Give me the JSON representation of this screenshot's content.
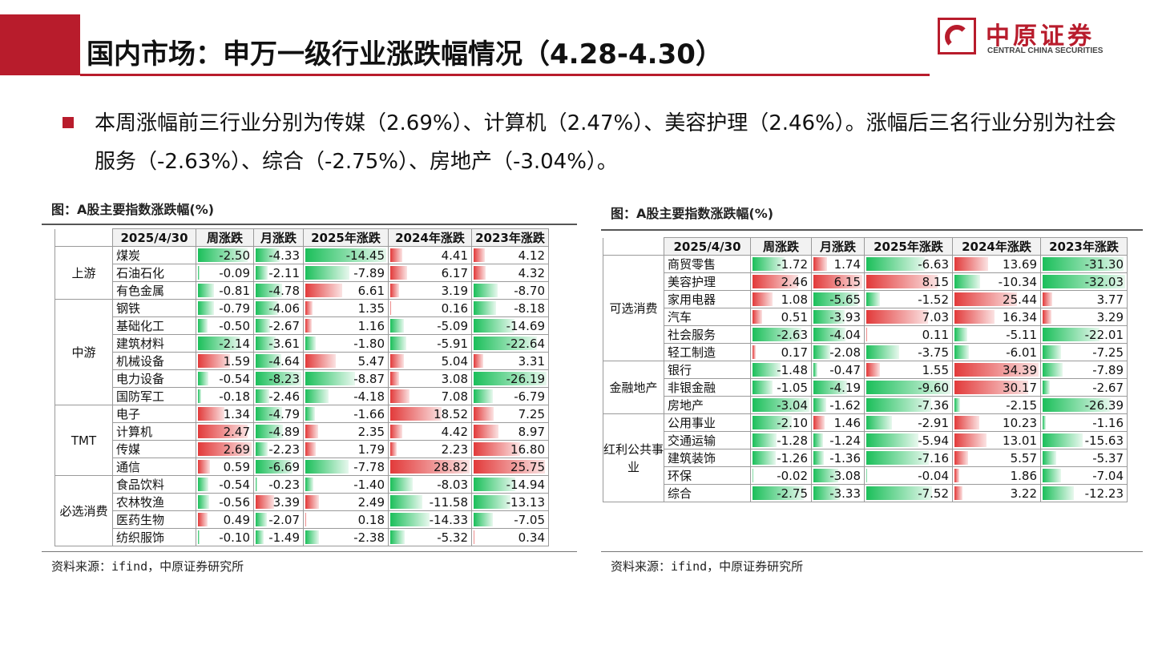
{
  "header": {
    "title": "国内市场：申万一级行业涨跌幅情况（4.28-4.30）",
    "logo_cn": "中原证券",
    "logo_en": "CENTRAL CHINA SECURITIES"
  },
  "summary": "本周涨幅前三行业分别为传媒（2.69%）、计算机（2.47%）、美容护理（2.46%）。涨幅后三名行业分别为社会服务（-2.63%）、综合（-2.75%）、房地产（-3.04%）。",
  "left_figure": {
    "caption": "图：A股主要指数涨跌幅(%)",
    "source": "资料来源：ifind，中原证券研究所",
    "headers": [
      "2025/4/30",
      "周涨跌",
      "月涨跌",
      "2025年涨跌",
      "2024年涨跌",
      "2023年涨跌"
    ],
    "max": [
      2.69,
      8.23,
      14.45,
      28.82,
      26.19
    ],
    "groups": [
      {
        "name": "上游",
        "rows": [
          {
            "name": "煤炭",
            "v": [
              "-2.50",
              "-4.33",
              "-14.45",
              "4.41",
              "4.12"
            ]
          },
          {
            "name": "石油石化",
            "v": [
              "-0.09",
              "-2.11",
              "-7.89",
              "6.17",
              "4.32"
            ]
          },
          {
            "name": "有色金属",
            "v": [
              "-0.81",
              "-4.78",
              "6.61",
              "3.19",
              "-8.70"
            ]
          }
        ]
      },
      {
        "name": "中游",
        "rows": [
          {
            "name": "钢铁",
            "v": [
              "-0.79",
              "-4.06",
              "1.35",
              "0.16",
              "-8.18"
            ]
          },
          {
            "name": "基础化工",
            "v": [
              "-0.50",
              "-2.67",
              "1.16",
              "-5.09",
              "-14.69"
            ]
          },
          {
            "name": "建筑材料",
            "v": [
              "-2.14",
              "-3.61",
              "-1.80",
              "-5.91",
              "-22.64"
            ]
          },
          {
            "name": "机械设备",
            "v": [
              "1.59",
              "-4.64",
              "5.47",
              "5.04",
              "3.31"
            ]
          },
          {
            "name": "电力设备",
            "v": [
              "-0.54",
              "-8.23",
              "-8.87",
              "3.08",
              "-26.19"
            ]
          },
          {
            "name": "国防军工",
            "v": [
              "-0.18",
              "-2.46",
              "-4.18",
              "7.08",
              "-6.79"
            ]
          }
        ]
      },
      {
        "name": "TMT",
        "rows": [
          {
            "name": "电子",
            "v": [
              "1.34",
              "-4.79",
              "-1.66",
              "18.52",
              "7.25"
            ]
          },
          {
            "name": "计算机",
            "v": [
              "2.47",
              "-4.89",
              "2.35",
              "4.42",
              "8.97"
            ]
          },
          {
            "name": "传媒",
            "v": [
              "2.69",
              "-2.23",
              "1.79",
              "2.23",
              "16.80"
            ]
          },
          {
            "name": "通信",
            "v": [
              "0.59",
              "-6.69",
              "-7.78",
              "28.82",
              "25.75"
            ]
          }
        ]
      },
      {
        "name": "必选消费",
        "rows": [
          {
            "name": "食品饮料",
            "v": [
              "-0.54",
              "-0.23",
              "-1.40",
              "-8.03",
              "-14.94"
            ]
          },
          {
            "name": "农林牧渔",
            "v": [
              "-0.56",
              "3.39",
              "2.49",
              "-11.58",
              "-13.13"
            ]
          },
          {
            "name": "医药生物",
            "v": [
              "0.49",
              "-2.07",
              "0.18",
              "-14.33",
              "-7.05"
            ]
          },
          {
            "name": "纺织服饰",
            "v": [
              "-0.10",
              "-1.49",
              "-2.38",
              "-5.32",
              "0.34"
            ]
          }
        ]
      }
    ]
  },
  "right_figure": {
    "caption": "图：A股主要指数涨跌幅(%)",
    "source": "资料来源：ifind，中原证券研究所",
    "headers": [
      "2025/4/30",
      "周涨跌",
      "月涨跌",
      "2025年涨跌",
      "2024年涨跌",
      "2023年涨跌"
    ],
    "max": [
      3.04,
      6.15,
      9.6,
      34.39,
      32.03
    ],
    "groups": [
      {
        "name": "可选消费",
        "rows": [
          {
            "name": "商贸零售",
            "v": [
              "-1.72",
              "1.74",
              "-6.63",
              "13.69",
              "-31.30"
            ]
          },
          {
            "name": "美容护理",
            "v": [
              "2.46",
              "6.15",
              "8.15",
              "-10.34",
              "-32.03"
            ]
          },
          {
            "name": "家用电器",
            "v": [
              "1.08",
              "-5.65",
              "-1.52",
              "25.44",
              "3.77"
            ]
          },
          {
            "name": "汽车",
            "v": [
              "0.51",
              "-3.93",
              "7.03",
              "16.34",
              "3.29"
            ]
          },
          {
            "name": "社会服务",
            "v": [
              "-2.63",
              "-4.04",
              "0.11",
              "-5.11",
              "-22.01"
            ]
          },
          {
            "name": "轻工制造",
            "v": [
              "0.17",
              "-2.08",
              "-3.75",
              "-6.01",
              "-7.25"
            ]
          }
        ]
      },
      {
        "name": "金融地产",
        "rows": [
          {
            "name": "银行",
            "v": [
              "-1.48",
              "-0.47",
              "1.55",
              "34.39",
              "-7.89"
            ]
          },
          {
            "name": "非银金融",
            "v": [
              "-1.05",
              "-4.19",
              "-9.60",
              "30.17",
              "-2.67"
            ]
          },
          {
            "name": "房地产",
            "v": [
              "-3.04",
              "-1.62",
              "-7.36",
              "-2.15",
              "-26.39"
            ]
          }
        ]
      },
      {
        "name": "红利公共事业",
        "rows": [
          {
            "name": "公用事业",
            "v": [
              "-2.10",
              "1.46",
              "-2.91",
              "10.23",
              "-1.16"
            ]
          },
          {
            "name": "交通运输",
            "v": [
              "-1.28",
              "-1.24",
              "-5.94",
              "13.01",
              "-15.63"
            ]
          },
          {
            "name": "建筑装饰",
            "v": [
              "-1.26",
              "-1.36",
              "-7.16",
              "5.57",
              "-5.37"
            ]
          },
          {
            "name": "环保",
            "v": [
              "-0.02",
              "-3.08",
              "-0.04",
              "1.86",
              "-7.04"
            ]
          },
          {
            "name": "综合",
            "v": [
              "-2.75",
              "-3.33",
              "-7.52",
              "3.22",
              "-12.23"
            ]
          }
        ]
      }
    ]
  }
}
